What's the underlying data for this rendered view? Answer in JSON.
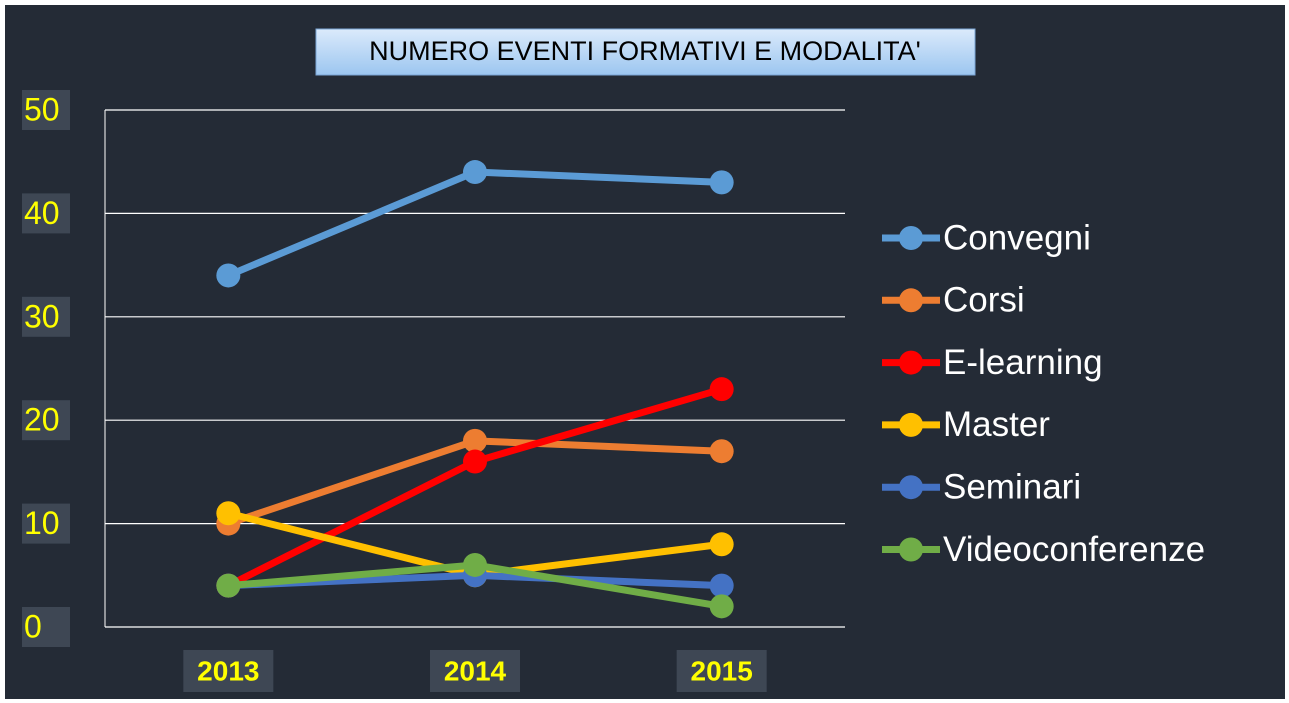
{
  "chart_data": {
    "type": "line",
    "title": "NUMERO EVENTI FORMATIVI E MODALITA'",
    "categories": [
      "2013",
      "2014",
      "2015"
    ],
    "series": [
      {
        "name": "Convegni",
        "color": "#5b9bd5",
        "values": [
          34,
          44,
          43
        ]
      },
      {
        "name": "Corsi",
        "color": "#ed7d31",
        "values": [
          10,
          18,
          17
        ]
      },
      {
        "name": "E-learning",
        "color": "#ff0000",
        "values": [
          4,
          16,
          23
        ]
      },
      {
        "name": "Master",
        "color": "#ffc000",
        "values": [
          11,
          5,
          8
        ]
      },
      {
        "name": "Seminari",
        "color": "#4472c4",
        "values": [
          4,
          5,
          4
        ]
      },
      {
        "name": "Videoconferenze",
        "color": "#70ad47",
        "values": [
          4,
          6,
          2
        ]
      }
    ],
    "ylim": [
      0,
      50
    ],
    "yticks": [
      0,
      10,
      20,
      30,
      40,
      50
    ],
    "grid": true,
    "legend": "right"
  }
}
